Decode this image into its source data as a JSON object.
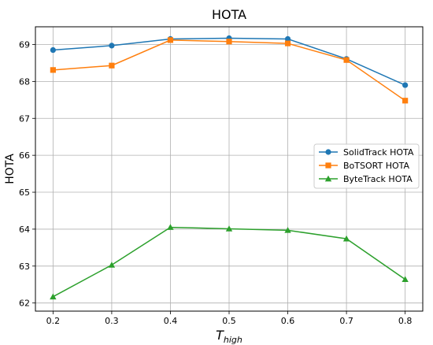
{
  "chart_data": {
    "type": "line",
    "title": "HOTA",
    "xlabel_main": "T",
    "xlabel_sub": "high",
    "ylabel": "HOTA",
    "x": [
      0.2,
      0.3,
      0.4,
      0.5,
      0.6,
      0.7,
      0.8
    ],
    "x_tick_labels": [
      "0.2",
      "0.3",
      "0.4",
      "0.5",
      "0.6",
      "0.7",
      "0.8"
    ],
    "y_ticks": [
      62,
      63,
      64,
      65,
      66,
      67,
      68,
      69
    ],
    "y_tick_labels": [
      "62",
      "63",
      "64",
      "65",
      "66",
      "67",
      "68",
      "69"
    ],
    "xlim": [
      0.17,
      0.83
    ],
    "ylim": [
      61.78,
      69.48
    ],
    "grid": true,
    "legend_position": "center-right",
    "series": [
      {
        "name": "SolidTrack HOTA",
        "color": "#1f77b4",
        "marker": "circle",
        "values": [
          68.85,
          68.97,
          69.15,
          69.17,
          69.15,
          68.61,
          67.9
        ]
      },
      {
        "name": "BoTSORT HOTA",
        "color": "#ff7f0e",
        "marker": "square",
        "values": [
          68.31,
          68.43,
          69.12,
          69.08,
          69.03,
          68.58,
          67.48
        ]
      },
      {
        "name": "ByteTrack HOTA",
        "color": "#2ca02c",
        "marker": "triangle",
        "values": [
          62.17,
          63.03,
          64.05,
          64.01,
          63.97,
          63.74,
          62.64
        ]
      }
    ]
  }
}
